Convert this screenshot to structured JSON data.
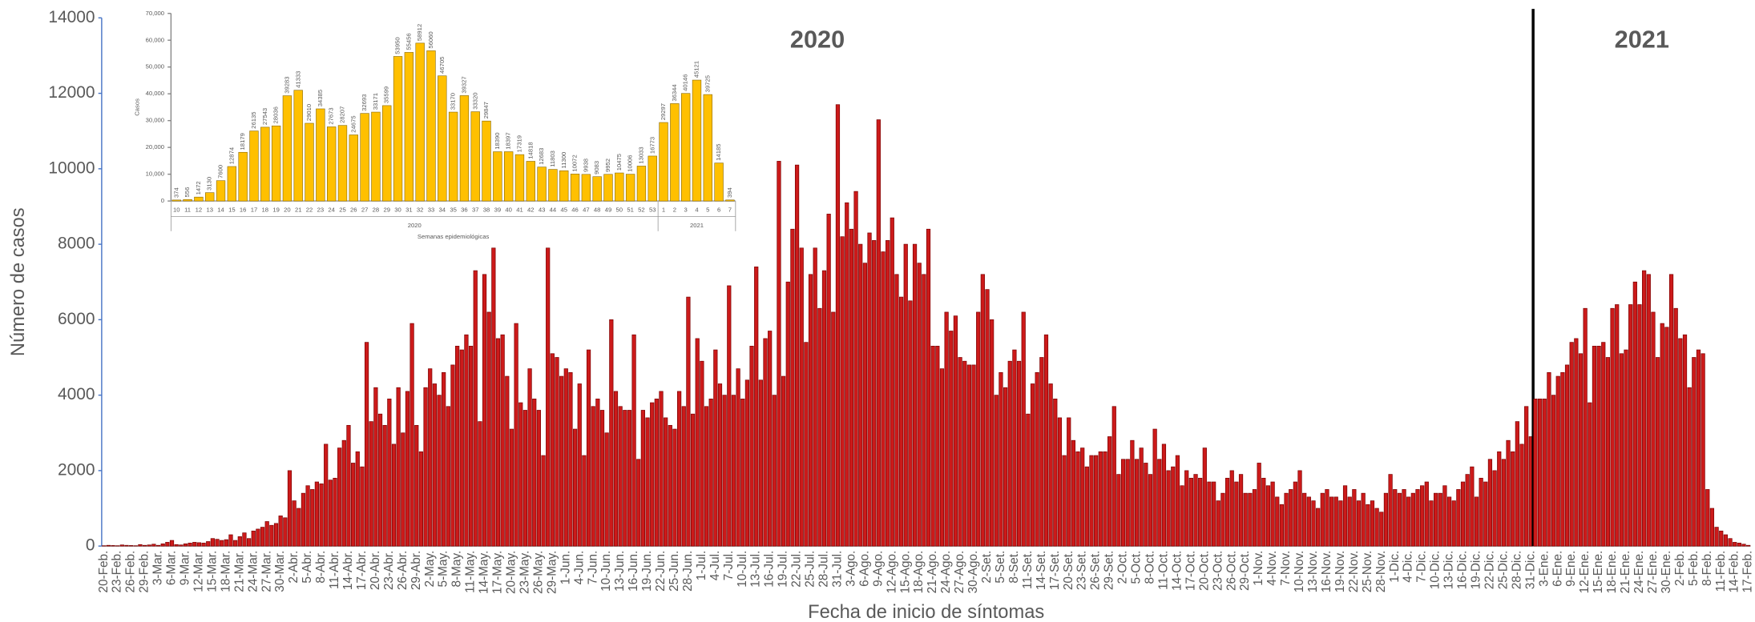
{
  "chart_data": [
    {
      "type": "bar",
      "color": "#cc1a1a",
      "ylim": [
        0,
        14000
      ],
      "yticks": [
        0,
        2000,
        4000,
        6000,
        8000,
        10000,
        12000,
        14000
      ],
      "y_label": "Número de casos",
      "x_label": "Fecha de inicio de síntomas",
      "groups": [
        {
          "label": "2020",
          "categories": [
            "20-Feb.",
            null,
            null,
            "23-Feb.",
            null,
            null,
            "26-Feb.",
            null,
            null,
            "29-Feb.",
            null,
            null,
            "3-Mar.",
            null,
            null,
            "6-Mar.",
            null,
            null,
            "9-Mar.",
            null,
            null,
            "12-Mar.",
            null,
            null,
            "15-Mar.",
            null,
            null,
            "18-Mar.",
            null,
            null,
            "21-Mar.",
            null,
            null,
            "24-Mar.",
            null,
            null,
            "27-Mar.",
            null,
            null,
            "30-Mar.",
            null,
            null,
            "2-Abr.",
            null,
            null,
            "5-Abr.",
            null,
            null,
            "8-Abr.",
            null,
            null,
            "11-Abr.",
            null,
            null,
            "14-Abr.",
            null,
            null,
            "17-Abr.",
            null,
            null,
            "20-Abr.",
            null,
            null,
            "23-Abr.",
            null,
            null,
            "26-Abr.",
            null,
            null,
            "29-Abr.",
            null,
            null,
            "2-May.",
            null,
            null,
            "5-May.",
            null,
            null,
            "8-May.",
            null,
            null,
            "11-May.",
            null,
            null,
            "14-May.",
            null,
            null,
            "17-May.",
            null,
            null,
            "20-May.",
            null,
            null,
            "23-May.",
            null,
            null,
            "26-May.",
            null,
            null,
            "29-May.",
            null,
            null,
            "1-Jun.",
            null,
            null,
            "4-Jun.",
            null,
            null,
            "7-Jun.",
            null,
            null,
            "10-Jun.",
            null,
            null,
            "13-Jun.",
            null,
            null,
            "16-Jun.",
            null,
            null,
            "19-Jun.",
            null,
            null,
            "22-Jun.",
            null,
            null,
            "25-Jun.",
            null,
            null,
            "28-Jun.",
            null,
            null,
            "1-Jul.",
            null,
            null,
            "4-Jul.",
            null,
            null,
            "7-Jul.",
            null,
            null,
            "10-Jul.",
            null,
            null,
            "13-Jul.",
            null,
            null,
            "16-Jul.",
            null,
            null,
            "19-Jul.",
            null,
            null,
            "22-Jul.",
            null,
            null,
            "25-Jul.",
            null,
            null,
            "28-Jul.",
            null,
            null,
            "31-Jul.",
            null,
            null,
            "3-Ago.",
            null,
            null,
            "6-Ago.",
            null,
            null,
            "9-Ago.",
            null,
            null,
            "12-Ago.",
            null,
            null,
            "15-Ago.",
            null,
            null,
            "18-Ago.",
            null,
            null,
            "21-Ago.",
            null,
            null,
            "24-Ago.",
            null,
            null,
            "27-Ago.",
            null,
            null,
            "30-Ago.",
            null,
            null,
            "2-Set.",
            null,
            null,
            "5-Set.",
            null,
            null,
            "8-Set.",
            null,
            null,
            "11-Set.",
            null,
            null,
            "14-Set.",
            null,
            null,
            "17-Set.",
            null,
            null,
            "20-Set.",
            null,
            null,
            "23-Set.",
            null,
            null,
            "26-Set.",
            null,
            null,
            "29-Set.",
            null,
            null,
            "2-Oct.",
            null,
            null,
            "5-Oct.",
            null,
            null,
            "8-Oct.",
            null,
            null,
            "11-Oct.",
            null,
            null,
            "14-Oct.",
            null,
            null,
            "17-Oct.",
            null,
            null,
            "20-Oct.",
            null,
            null,
            "23-Oct.",
            null,
            null,
            "26-Oct.",
            null,
            null,
            "29-Oct.",
            null,
            null,
            "1-Nov.",
            null,
            null,
            "4-Nov.",
            null,
            null,
            "7-Nov.",
            null,
            null,
            "10-Nov.",
            null,
            null,
            "13-Nov.",
            null,
            null,
            "16-Nov.",
            null,
            null,
            "19-Nov.",
            null,
            null,
            "22-Nov.",
            null,
            null,
            "25-Nov.",
            null,
            null,
            "28-Nov.",
            null,
            null,
            "1-Dic.",
            null,
            null,
            "4-Dic.",
            null,
            null,
            "7-Dic.",
            null,
            null,
            "10-Dic.",
            null,
            null,
            "13-Dic.",
            null,
            null,
            "16-Dic.",
            null,
            null,
            "19-Dic.",
            null,
            null,
            "22-Dic.",
            null,
            null,
            "25-Dic.",
            null,
            null,
            "28-Dic.",
            null,
            null,
            "31-Dic."
          ],
          "values": [
            10,
            20,
            15,
            10,
            30,
            20,
            15,
            10,
            40,
            20,
            30,
            50,
            20,
            60,
            100,
            150,
            40,
            30,
            60,
            80,
            100,
            90,
            80,
            120,
            200,
            180,
            150,
            170,
            300,
            150,
            250,
            350,
            200,
            400,
            450,
            500,
            650,
            550,
            600,
            800,
            750,
            2000,
            1200,
            1000,
            1400,
            1600,
            1500,
            1700,
            1650,
            2700,
            1750,
            1800,
            2600,
            2800,
            3200,
            2200,
            2500,
            2100,
            5400,
            3300,
            4200,
            3500,
            3200,
            3900,
            2700,
            4200,
            3000,
            4100,
            5900,
            3200,
            2500,
            4200,
            4700,
            4300,
            4000,
            4600,
            3700,
            4800,
            5300,
            5200,
            5600,
            5300,
            7300,
            3300,
            7200,
            6200,
            7900,
            5500,
            5600,
            4500,
            3100,
            5900,
            3800,
            3600,
            4700,
            3900,
            3600,
            2400,
            7900,
            5100,
            5000,
            4500,
            4700,
            4600,
            3100,
            4300,
            2400,
            5200,
            3700,
            3900,
            3600,
            3000,
            6000,
            4100,
            3700,
            3600,
            3600,
            5600,
            2300,
            3600,
            3400,
            3800,
            3900,
            4100,
            3400,
            3200,
            3100,
            4100,
            3700,
            6600,
            3500,
            5500,
            4900,
            3700,
            3900,
            5200,
            4300,
            4000,
            6900,
            4000,
            4700,
            3900,
            4400,
            5300,
            7400,
            4400,
            5500,
            5700,
            4000,
            10200,
            4500,
            7000,
            8400,
            10100,
            7900,
            5400,
            7200,
            7900,
            6300,
            7300,
            8800,
            6200,
            11700,
            8200,
            9100,
            8400,
            9400,
            8000,
            7500,
            8300,
            8100,
            11300,
            7800,
            8100,
            8700,
            7200,
            6600,
            8000,
            6500,
            8000,
            7500,
            7200,
            8400,
            5300,
            5300,
            4700,
            6200,
            5700,
            6100,
            5000,
            4900,
            4800,
            4800,
            6200,
            7200,
            6800,
            6000,
            4000,
            4600,
            4200,
            4900,
            5200,
            4900,
            6200,
            3500,
            4300,
            4600,
            5000,
            5600,
            4300,
            3900,
            3400,
            2400,
            3400,
            2800,
            2500,
            2600,
            2100,
            2400,
            2400,
            2500,
            2500,
            2900,
            3700,
            1900,
            2300,
            2300,
            2800,
            2300,
            2600,
            2200,
            1900,
            3100,
            2300,
            2700,
            2000,
            2100,
            2400,
            1600,
            2000,
            1800,
            1900,
            1800,
            2600,
            1700,
            1700,
            1200,
            1400,
            1800,
            2000,
            1700,
            1900,
            1400,
            1400,
            1500,
            2200,
            1800,
            1600,
            1700,
            1300,
            1100,
            1400,
            1500,
            1700,
            2000,
            1400,
            1300,
            1200,
            1000,
            1400,
            1500,
            1300,
            1300,
            1200,
            1600,
            1300,
            1500,
            1200,
            1400,
            1100,
            1200,
            1000,
            900,
            1400,
            1900,
            1500,
            1400,
            1500,
            1300,
            1400,
            1500,
            1600,
            1700,
            1200,
            1400,
            1400,
            1600,
            1300,
            1200,
            1500,
            1700,
            1900,
            2100,
            1300,
            1800,
            1700,
            2300,
            2000,
            2500,
            2300,
            2800,
            2500,
            3300,
            2700,
            3700,
            2900
          ]
        },
        {
          "label": "2021",
          "categories": [
            null,
            null,
            "3-Ene.",
            null,
            null,
            "6-Ene.",
            null,
            null,
            "9-Ene.",
            null,
            null,
            "12-Ene.",
            null,
            null,
            "15-Ene.",
            null,
            null,
            "18-Ene.",
            null,
            null,
            "21-Ene.",
            null,
            null,
            "24-Ene.",
            null,
            null,
            "27-Ene.",
            null,
            null,
            "30-Ene.",
            null,
            null,
            "2-Feb.",
            null,
            null,
            "5-Feb.",
            null,
            null,
            "8-Feb.",
            null,
            null,
            "11-Feb.",
            null,
            null,
            "14-Feb.",
            null,
            null,
            "17-Feb."
          ],
          "values": [
            3900,
            3900,
            3900,
            4600,
            4000,
            4500,
            4600,
            4800,
            5400,
            5500,
            5100,
            6300,
            3800,
            5300,
            5300,
            5400,
            5000,
            6300,
            6400,
            5100,
            5200,
            6400,
            7000,
            6400,
            7300,
            7200,
            6200,
            5000,
            5900,
            5800,
            7200,
            6300,
            5500,
            5600,
            4200,
            5000,
            5200,
            5100,
            1500,
            1000,
            500,
            400,
            300,
            200,
            100,
            80,
            50,
            20
          ]
        }
      ]
    },
    {
      "type": "bar",
      "color": "#ffc000",
      "ylim": [
        0,
        70000
      ],
      "yticks": [
        0,
        {
          "value": 10000,
          "label": "10,000"
        },
        {
          "value": 20000,
          "label": "20,000"
        },
        {
          "value": 30000,
          "label": "30,000"
        },
        {
          "value": 40000,
          "label": "40,000"
        },
        {
          "value": 50000,
          "label": "50,000"
        },
        {
          "value": 60000,
          "label": "60,000"
        },
        {
          "value": 70000,
          "label": "70,000"
        }
      ],
      "y_label": "Casos",
      "x_label": "Semanas epidemiológicas",
      "groups": [
        {
          "label": "2020",
          "categories": [
            "10",
            "11",
            "12",
            "13",
            "14",
            "15",
            "16",
            "17",
            "18",
            "19",
            "20",
            "21",
            "22",
            "23",
            "24",
            "25",
            "26",
            "27",
            "28",
            "29",
            "30",
            "31",
            "32",
            "33",
            "34",
            "35",
            "36",
            "37",
            "38",
            "39",
            "40",
            "41",
            "42",
            "43",
            "44",
            "45",
            "46",
            "47",
            "48",
            "49",
            "50",
            "51",
            "52",
            "53"
          ],
          "values": [
            374,
            556,
            1472,
            3130,
            7600,
            12874,
            18179,
            26135,
            27543,
            28036,
            39283,
            41333,
            29010,
            34385,
            27673,
            28207,
            24675,
            32693,
            33171,
            35599,
            53950,
            55456,
            58912,
            56060,
            46705,
            33170,
            39327,
            33320,
            29847,
            18390,
            18397,
            17319,
            14818,
            12683,
            11803,
            11300,
            10072,
            9938,
            9083,
            9952,
            10475,
            10006,
            13033,
            16773
          ]
        },
        {
          "label": "2021",
          "categories": [
            "1",
            "2",
            "3",
            "4",
            "5",
            "6",
            "7"
          ],
          "values": [
            29297,
            36344,
            40146,
            45121,
            39725,
            14185,
            394
          ]
        }
      ]
    }
  ]
}
